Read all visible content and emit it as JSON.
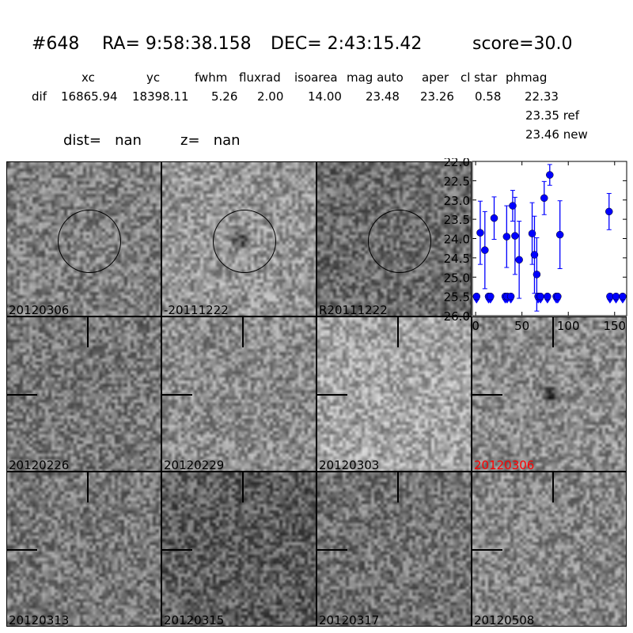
{
  "header": {
    "id": "#648",
    "ra": "RA= 9:58:38.158",
    "dec": "DEC= 2:43:15.42",
    "score": "score=30.0"
  },
  "table": {
    "columns": [
      "xc",
      "yc",
      "fwhm",
      "fluxrad",
      "isoarea",
      "mag auto",
      "aper",
      "cl star",
      "phmag"
    ],
    "row_label": "dif",
    "values": [
      "16865.94",
      "18398.11",
      "5.26",
      "2.00",
      "14.00",
      "23.48",
      "23.26",
      "0.58",
      "22.33"
    ],
    "ref": "23.35 ref",
    "new": "23.46 new"
  },
  "dist": "dist=   nan",
  "z": "z=   nan",
  "stamps": [
    {
      "label": "20120306",
      "kind": "circle",
      "mean": 128,
      "blob": false
    },
    {
      "label": "-20111222",
      "kind": "circle",
      "mean": 150,
      "blob": true
    },
    {
      "label": "R20111222",
      "kind": "circle",
      "mean": 110,
      "blob": false
    },
    {
      "label": "20120226",
      "kind": "cross",
      "mean": 120,
      "blob": false
    },
    {
      "label": "20120229",
      "kind": "cross",
      "mean": 140,
      "blob": false
    },
    {
      "label": "20120303",
      "kind": "cross",
      "mean": 165,
      "blob": false
    },
    {
      "label": "20120306",
      "kind": "cross",
      "mean": 140,
      "blob": true,
      "label_color": "#ff0000"
    },
    {
      "label": "20120313",
      "kind": "cross",
      "mean": 120,
      "blob": false
    },
    {
      "label": "20120315",
      "kind": "cross",
      "mean": 95,
      "blob": false
    },
    {
      "label": "20120317",
      "kind": "cross",
      "mean": 115,
      "blob": false
    },
    {
      "label": "20120508",
      "kind": "cross",
      "mean": 135,
      "blob": false
    }
  ],
  "chart_data": {
    "type": "scatter",
    "xlim": [
      -3.5,
      163
    ],
    "ylim": [
      26.0,
      22.0
    ],
    "y_inverted": true,
    "xticks": [
      "0",
      "50",
      "100",
      "150"
    ],
    "yticks": [
      "22.0",
      "22.5",
      "23.0",
      "23.5",
      "24.0",
      "24.5",
      "25.0",
      "25.5",
      "26.0"
    ],
    "color": "#0000ff",
    "detections": [
      {
        "x": 5,
        "y": 23.85,
        "err": 0.82
      },
      {
        "x": 10,
        "y": 24.3,
        "err": 1.0
      },
      {
        "x": 20,
        "y": 23.47,
        "err": 0.55
      },
      {
        "x": 33.5,
        "y": 23.95,
        "err": 0.8
      },
      {
        "x": 40,
        "y": 23.15,
        "err": 0.4
      },
      {
        "x": 42.5,
        "y": 23.93,
        "err": 1.0
      },
      {
        "x": 47,
        "y": 24.55,
        "err": 1.0
      },
      {
        "x": 61,
        "y": 23.87,
        "err": 0.8
      },
      {
        "x": 63.5,
        "y": 24.42,
        "err": 1.0
      },
      {
        "x": 66,
        "y": 24.93,
        "err": 0.95
      },
      {
        "x": 74,
        "y": 22.95,
        "err": 0.43
      },
      {
        "x": 80,
        "y": 22.35,
        "err": 0.27
      },
      {
        "x": 91,
        "y": 23.9,
        "err": 0.88
      },
      {
        "x": 144,
        "y": 23.3,
        "err": 0.47
      }
    ],
    "upper_limits": [
      {
        "x": 1,
        "y": 25.5
      },
      {
        "x": 14,
        "y": 25.5
      },
      {
        "x": 16,
        "y": 25.5
      },
      {
        "x": 32,
        "y": 25.5
      },
      {
        "x": 34,
        "y": 25.5
      },
      {
        "x": 38,
        "y": 25.5
      },
      {
        "x": 67.5,
        "y": 25.5
      },
      {
        "x": 70,
        "y": 25.5
      },
      {
        "x": 77.5,
        "y": 25.5
      },
      {
        "x": 87,
        "y": 25.5
      },
      {
        "x": 88.6,
        "y": 25.5
      },
      {
        "x": 145,
        "y": 25.5
      },
      {
        "x": 151.5,
        "y": 25.5
      },
      {
        "x": 158.7,
        "y": 25.5
      }
    ]
  }
}
